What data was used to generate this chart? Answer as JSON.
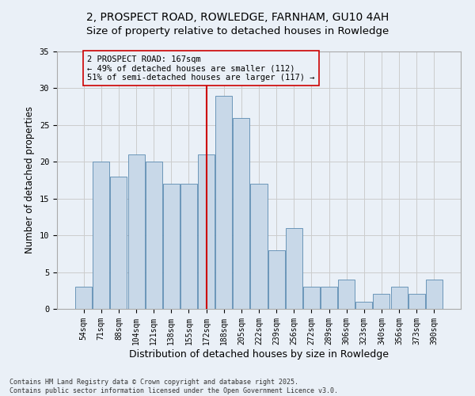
{
  "title1": "2, PROSPECT ROAD, ROWLEDGE, FARNHAM, GU10 4AH",
  "title2": "Size of property relative to detached houses in Rowledge",
  "xlabel": "Distribution of detached houses by size in Rowledge",
  "ylabel": "Number of detached properties",
  "categories": [
    "54sqm",
    "71sqm",
    "88sqm",
    "104sqm",
    "121sqm",
    "138sqm",
    "155sqm",
    "172sqm",
    "188sqm",
    "205sqm",
    "222sqm",
    "239sqm",
    "256sqm",
    "272sqm",
    "289sqm",
    "306sqm",
    "323sqm",
    "340sqm",
    "356sqm",
    "373sqm",
    "390sqm"
  ],
  "values": [
    3,
    20,
    18,
    21,
    20,
    17,
    17,
    21,
    29,
    26,
    17,
    8,
    11,
    3,
    3,
    4,
    1,
    2,
    3,
    2,
    4
  ],
  "bar_color": "#c8d8e8",
  "bar_edge_color": "#5a8ab0",
  "grid_color": "#cccccc",
  "bg_color": "#eaf0f7",
  "vline_x_index": 7,
  "vline_color": "#cc0000",
  "annotation_text": "2 PROSPECT ROAD: 167sqm\n← 49% of detached houses are smaller (112)\n51% of semi-detached houses are larger (117) →",
  "annotation_box_color": "#cc0000",
  "annotation_text_color": "#000000",
  "ylim": [
    0,
    35
  ],
  "yticks": [
    0,
    5,
    10,
    15,
    20,
    25,
    30,
    35
  ],
  "footer": "Contains HM Land Registry data © Crown copyright and database right 2025.\nContains public sector information licensed under the Open Government Licence v3.0.",
  "title_fontsize": 10,
  "subtitle_fontsize": 9.5,
  "tick_fontsize": 7,
  "xlabel_fontsize": 9,
  "ylabel_fontsize": 8.5,
  "annotation_fontsize": 7.5,
  "footer_fontsize": 6
}
